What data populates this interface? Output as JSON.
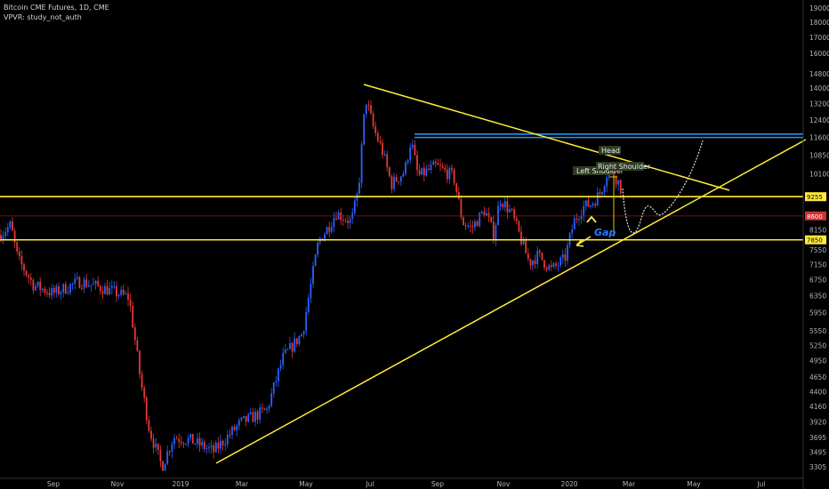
{
  "header": {
    "title": "Bitcoin CME Futures, 1D, CME",
    "indicator": "VPVR: study_not_auth"
  },
  "colors": {
    "background": "#000000",
    "up": "#2962ff",
    "down": "#e53935",
    "trendline": "#ffeb3b",
    "resistance": "#2196f3",
    "price_badge": "#d32f2f"
  },
  "chart_data": {
    "type": "candlestick",
    "title": "Bitcoin CME Futures, 1D, CME",
    "y_axis": {
      "scale": "log",
      "ticks": [
        3305,
        3495,
        3695,
        3920,
        4160,
        4400,
        4650,
        4950,
        5250,
        5550,
        5950,
        6350,
        6750,
        7150,
        7550,
        8150,
        9255,
        10100,
        10850,
        11600,
        12400,
        13200,
        14000,
        14800,
        16000,
        17000,
        18000,
        19000
      ],
      "range": [
        3160,
        19600
      ]
    },
    "x_axis": {
      "ticks": [
        "Sep",
        "Nov",
        "2019",
        "Mar",
        "May",
        "Jul",
        "Sep",
        "Nov",
        "2020",
        "Mar",
        "May",
        "Jul"
      ]
    },
    "price_labels": [
      {
        "value": 9255,
        "text": "9255",
        "style": "yellow"
      },
      {
        "value": 8600,
        "text": "8600",
        "style": "red"
      },
      {
        "value": 7850,
        "text": "7850",
        "style": "yellow"
      }
    ],
    "horizontal_levels": [
      {
        "value": 9255,
        "color": "yellow"
      },
      {
        "value": 7850,
        "color": "yellow"
      },
      {
        "value": 8600,
        "color": "red"
      },
      {
        "value": 11600,
        "color": "blue"
      },
      {
        "value": 11750,
        "color": "blue"
      }
    ],
    "annotations": [
      {
        "text": "Head"
      },
      {
        "text": "Left Shoulder"
      },
      {
        "text": "Right Shoulder"
      },
      {
        "text": "Gap"
      }
    ]
  }
}
